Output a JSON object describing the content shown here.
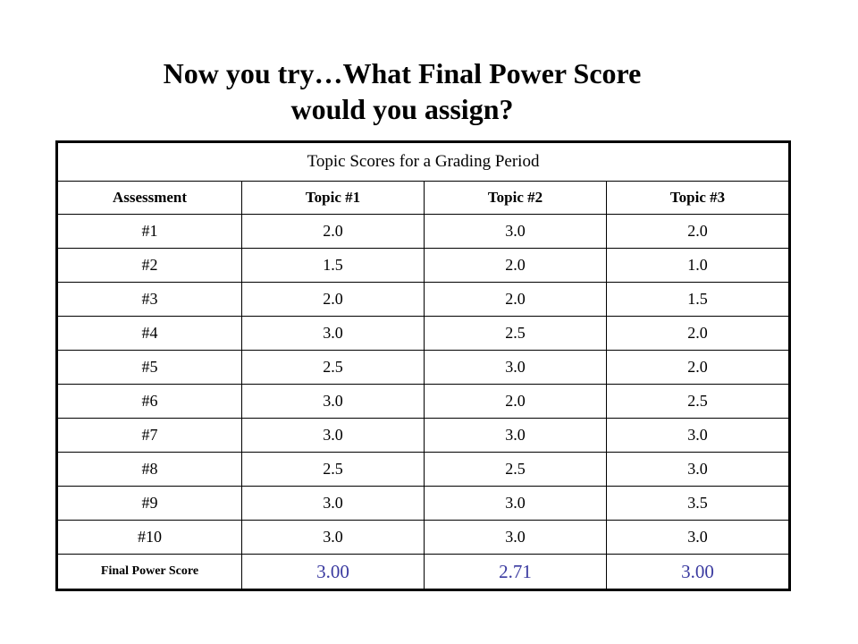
{
  "title": {
    "line1": "Now you try…What Final Power Score",
    "line2": "would you assign?"
  },
  "table": {
    "caption": "Topic Scores for a Grading Period",
    "headers": [
      "Assessment",
      "Topic #1",
      "Topic #2",
      "Topic #3"
    ],
    "rows": [
      [
        "#1",
        "2.0",
        "3.0",
        "2.0"
      ],
      [
        "#2",
        "1.5",
        "2.0",
        "1.0"
      ],
      [
        "#3",
        "2.0",
        "2.0",
        "1.5"
      ],
      [
        "#4",
        "3.0",
        "2.5",
        "2.0"
      ],
      [
        "#5",
        "2.5",
        "3.0",
        "2.0"
      ],
      [
        "#6",
        "3.0",
        "2.0",
        "2.5"
      ],
      [
        "#7",
        "3.0",
        "3.0",
        "3.0"
      ],
      [
        "#8",
        "2.5",
        "2.5",
        "3.0"
      ],
      [
        "#9",
        "3.0",
        "3.0",
        "3.5"
      ],
      [
        "#10",
        "3.0",
        "3.0",
        "3.0"
      ]
    ],
    "final": {
      "label": "Final Power Score",
      "values": [
        "3.00",
        "2.71",
        "3.00"
      ]
    }
  },
  "colors": {
    "final_value": "#3a3aa0"
  }
}
